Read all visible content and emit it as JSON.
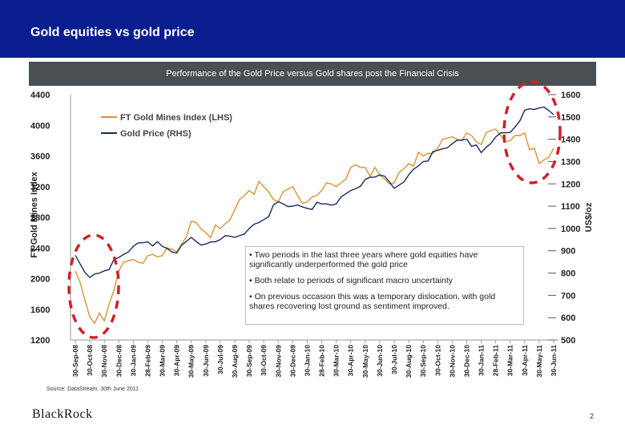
{
  "header": {
    "title": "Gold equities vs gold price"
  },
  "subtitle": "Performance of the Gold Price versus Gold shares post the Financial Crisis",
  "chart_data": {
    "type": "line",
    "title": "Performance of the Gold Price versus Gold shares post the Financial Crisis",
    "categories": [
      "30-Sep-08",
      "30-Oct-08",
      "30-Nov-08",
      "30-Dec-08",
      "30-Jan-09",
      "28-Feb-09",
      "30-Mar-09",
      "30-Apr-09",
      "30-May-09",
      "30-Jun-09",
      "30-Jul-09",
      "30-Aug-09",
      "30-Sep-09",
      "30-Oct-09",
      "30-Nov-09",
      "30-Dec-09",
      "30-Jan-10",
      "28-Feb-10",
      "30-Mar-10",
      "30-Apr-10",
      "30-May-10",
      "30-Jun-10",
      "30-Jul-10",
      "30-Aug-10",
      "30-Sep-10",
      "30-Oct-10",
      "30-Nov-10",
      "30-Dec-10",
      "30-Jan-11",
      "28-Feb-11",
      "30-Mar-11",
      "30-Apr-11",
      "30-May-11",
      "30-Jun-11"
    ],
    "left_axis": {
      "label": "FT Gold Mines Index",
      "ticks": [
        "4400",
        "4000",
        "3600",
        "3200",
        "2800",
        "2400",
        "2000",
        "1600",
        "1200"
      ],
      "min": 1200,
      "max": 4400
    },
    "right_axis": {
      "label": "US$/oz",
      "ticks": [
        "1600",
        "1500",
        "1400",
        "1300",
        "1200",
        "1100",
        "1000",
        "900",
        "800",
        "700",
        "600",
        "500"
      ],
      "min": 500,
      "max": 1600
    },
    "series": [
      {
        "name": "FT Gold Mines Index (LHS)",
        "axis": "left",
        "color": "#d99233",
        "values": [
          2100,
          1500,
          1450,
          2100,
          2250,
          2300,
          2300,
          2350,
          2750,
          2600,
          2650,
          2900,
          3150,
          3200,
          3000,
          3200,
          3000,
          3150,
          3200,
          3450,
          3450,
          3350,
          3250,
          3500,
          3600,
          3700,
          3850,
          3900,
          3750,
          3950,
          3800,
          3900,
          3500,
          3700
        ]
      },
      {
        "name": "Gold Price (RHS)",
        "axis": "right",
        "color": "#1a2a5c",
        "values": [
          880,
          780,
          810,
          870,
          920,
          940,
          920,
          890,
          960,
          930,
          950,
          960,
          1000,
          1040,
          1120,
          1100,
          1090,
          1110,
          1110,
          1170,
          1220,
          1240,
          1180,
          1240,
          1300,
          1350,
          1380,
          1400,
          1340,
          1410,
          1430,
          1530,
          1540,
          1510
        ]
      }
    ]
  },
  "annotations": [
    "• Two periods in the last three years where gold equities have significantly underperformed the gold price",
    "• Both relate to periods of significant macro uncertainty",
    "• On previous occasion this was a temporary dislocation, with gold shares recovering lost ground as sentiment improved."
  ],
  "source": "Source: DataStream, 30th June 2011",
  "logo": "BlackRock",
  "page_number": "2",
  "colors": {
    "header": "#0a1d8f",
    "subtitle_bar": "#4a4f52",
    "highlight": "#d0202a"
  }
}
